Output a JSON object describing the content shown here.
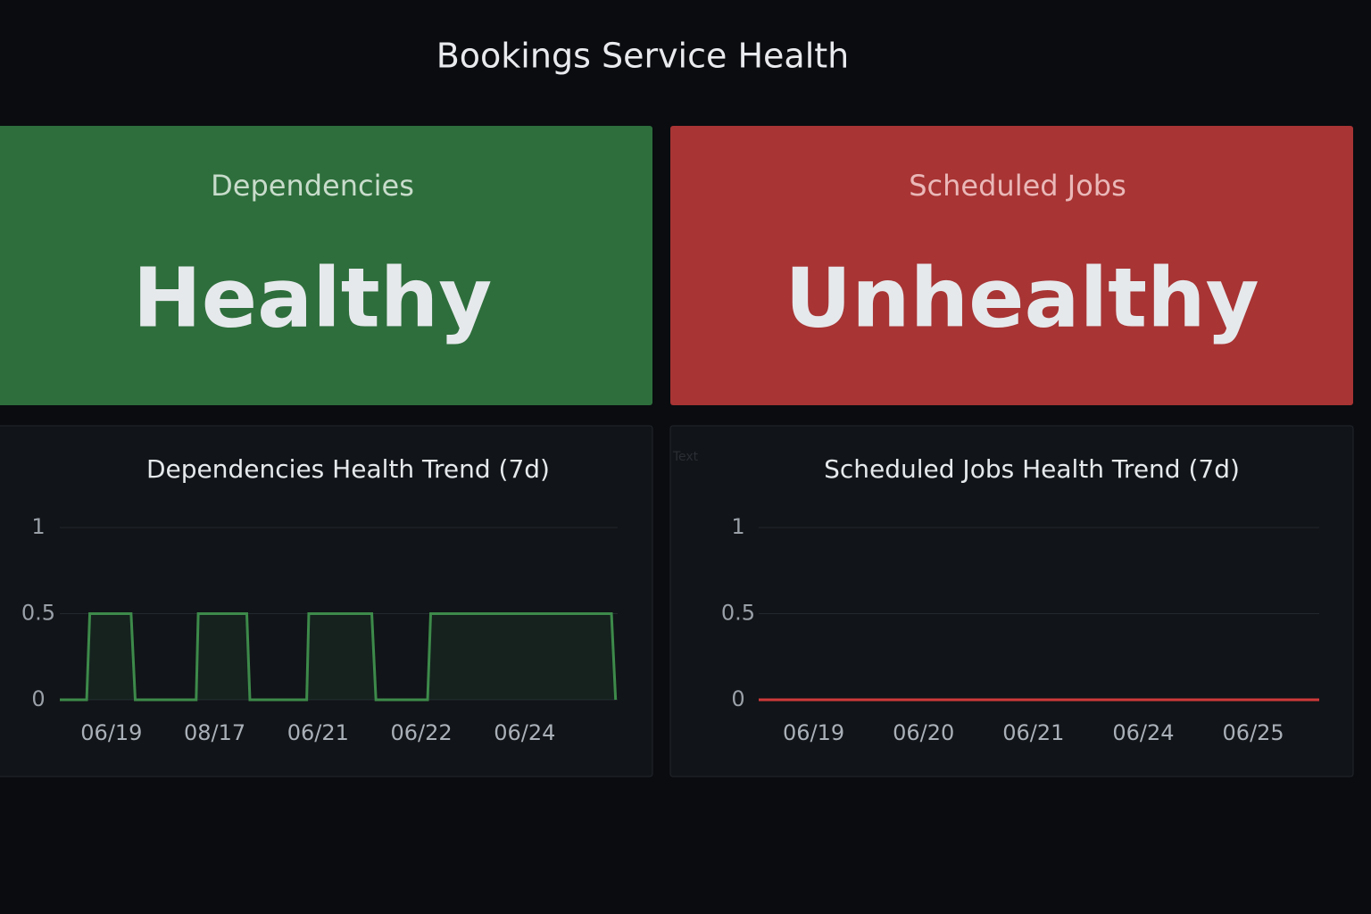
{
  "title": "Bookings Service Health",
  "status_panels": [
    {
      "label": "Dependencies",
      "status": "Healthy",
      "color": "#2e6e3c"
    },
    {
      "label": "Scheduled Jobs",
      "status": "Unhealthy",
      "color": "#a83434"
    }
  ],
  "stray_label": "Text",
  "chart_data": [
    {
      "type": "line",
      "title": "Dependencies Health Trend (7d)",
      "color": "#3d8a4a",
      "x": [
        0,
        0.26,
        0.29,
        0.69,
        0.73,
        1.32,
        1.34,
        1.81,
        1.84,
        2.39,
        2.41,
        3.02,
        3.06,
        3.56,
        3.59,
        5.34,
        5.38
      ],
      "values": [
        0,
        0,
        0.5,
        0.5,
        0,
        0,
        0.5,
        0.5,
        0,
        0,
        0.5,
        0.5,
        0,
        0,
        0.5,
        0.5,
        0
      ],
      "xlim": [
        0,
        5.4
      ],
      "xticks": [
        {
          "value": 0.5,
          "label": "06/19"
        },
        {
          "value": 1.5,
          "label": "08/17"
        },
        {
          "value": 2.5,
          "label": "06/21"
        },
        {
          "value": 3.5,
          "label": "06/22"
        },
        {
          "value": 4.5,
          "label": "06/24"
        }
      ],
      "ylim": [
        0,
        1
      ],
      "yticks": [
        0,
        0.5,
        1
      ],
      "grid": true,
      "fill": true
    },
    {
      "type": "line",
      "title": "Scheduled Jobs Health Trend (7d)",
      "color": "#d03a3a",
      "x": [
        0,
        5.1
      ],
      "values": [
        0,
        0
      ],
      "xlim": [
        0,
        5.1
      ],
      "xticks": [
        {
          "value": 0.5,
          "label": "06/19"
        },
        {
          "value": 1.5,
          "label": "06/20"
        },
        {
          "value": 2.5,
          "label": "06/21"
        },
        {
          "value": 3.5,
          "label": "06/24"
        },
        {
          "value": 4.5,
          "label": "06/25"
        }
      ],
      "ylim": [
        0,
        1
      ],
      "yticks": [
        0,
        0.5,
        1
      ],
      "grid": true,
      "fill": false
    }
  ]
}
